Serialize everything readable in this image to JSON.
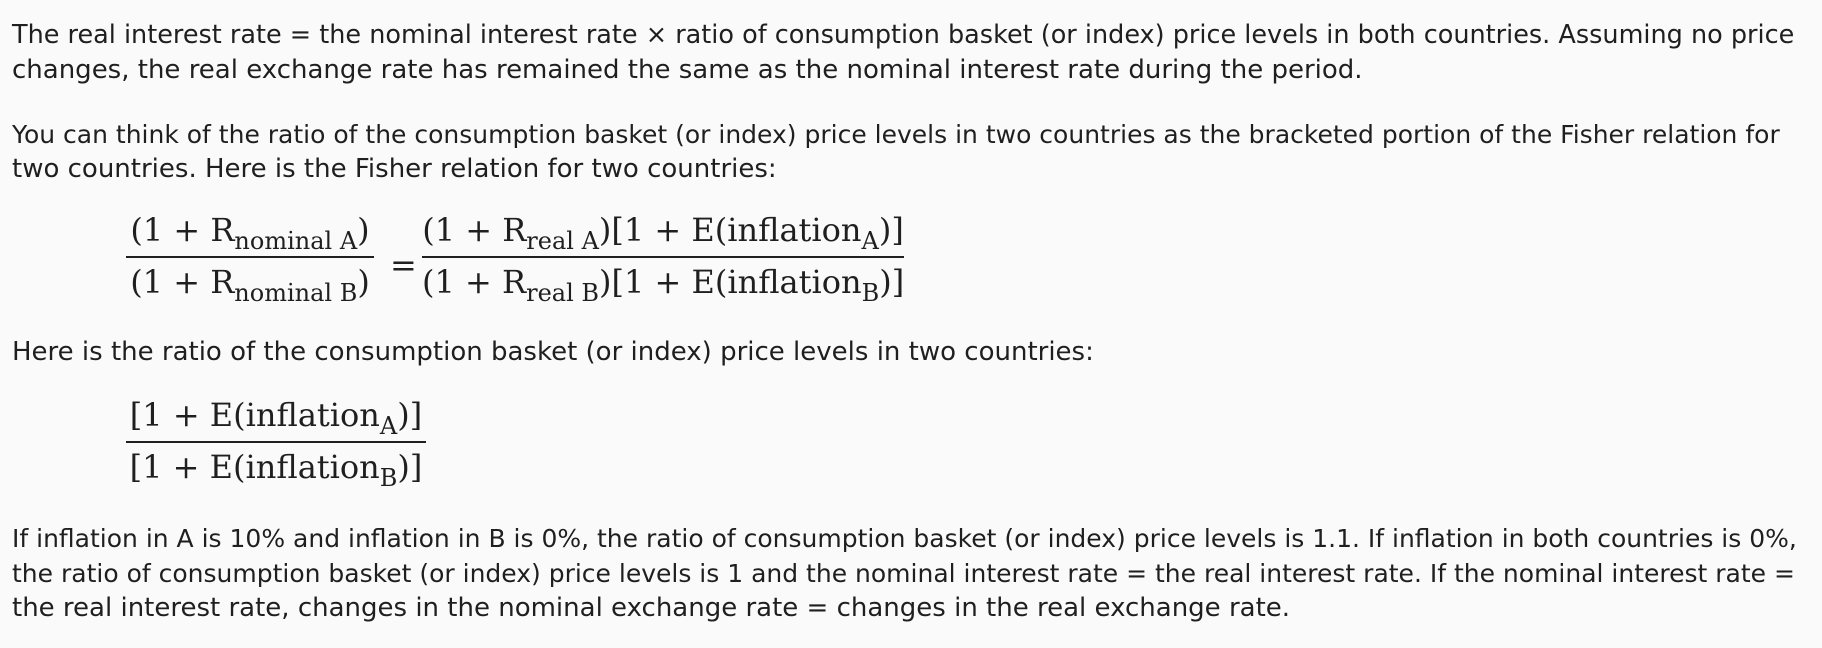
{
  "paragraphs": {
    "p1_line1": "The real interest rate = the nominal interest rate × ratio of consumption basket (or index) price levels in both countries. Assuming no price",
    "p1_line2": "changes, the real exchange rate has remained the same as the nominal interest rate during the period.",
    "p2_line1": "You can think of the ratio of the consumption basket (or index) price levels in two countries as the bracketed portion of the Fisher relation for",
    "p2_line2": "two countries. Here is the Fisher relation for two countries:",
    "p3_line1": "Here is the ratio of the consumption basket (or index) price levels in two countries:",
    "p4_line1": "If inflation in A is 10% and inflation in B is 0%, the ratio of consumption basket (or index) price levels is 1.1. If inflation in both countries is 0%,",
    "p4_line2": "the ratio of consumption basket (or index) price levels is 1 and the nominal interest rate = the real interest rate. If the nominal interest rate =",
    "p4_line3": "the real interest rate, changes in the nominal exchange rate = changes in the real exchange rate."
  },
  "fisher_relation": {
    "left_num_main": "(1 + R",
    "left_num_sub": "nominal A",
    "left_num_close": ")",
    "left_den_main": "(1 + R",
    "left_den_sub": "nominal B",
    "left_den_close": ")",
    "equals": "=",
    "right_num_a": "(1 + R",
    "right_num_sub1": "real A",
    "right_num_b": ")[1 + E(inflation",
    "right_num_sub2": "A",
    "right_num_c": ")]",
    "right_den_a": "(1 + R",
    "right_den_sub1": "real B",
    "right_den_b": ")[1 + E(inflation",
    "right_den_sub2": "B",
    "right_den_c": ")]"
  },
  "price_ratio": {
    "num_a": "[1 + E(inflation",
    "num_sub": "A",
    "num_b": ")]",
    "den_a": "[1 + E(inflation",
    "den_sub": "B",
    "den_b": ")]"
  }
}
